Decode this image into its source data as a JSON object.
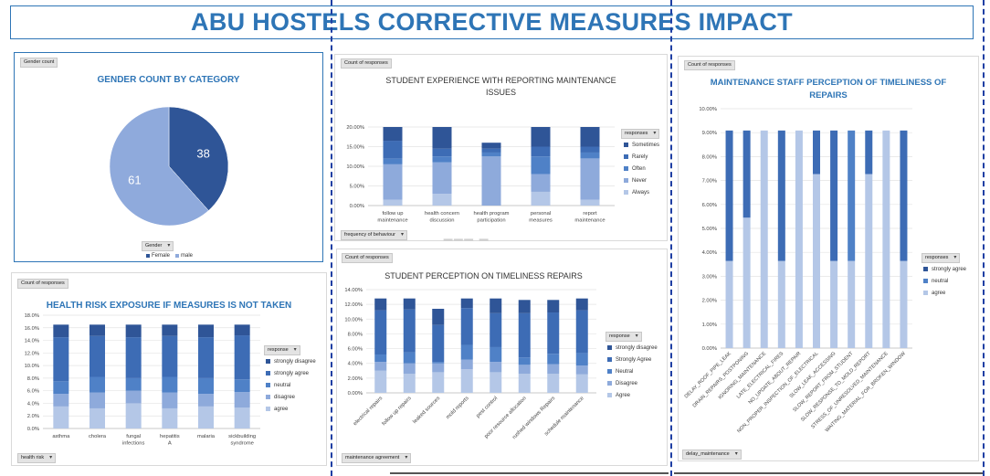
{
  "dashboard_title": "ABU HOSTELS CORRECTIVE MEASURES IMPACT",
  "colors": {
    "shade1": "#2f5597",
    "shade2": "#3d6cb5",
    "shade3": "#4f81c7",
    "shade4": "#8eaadb",
    "shade5": "#b4c7e7",
    "accent": "#2e75b6"
  },
  "gender_panel": {
    "field_button": "Gender count",
    "filter_button": "Gender",
    "legend": [
      {
        "label": "Female",
        "color": "#2f5597"
      },
      {
        "label": "male",
        "color": "#8faadc"
      }
    ]
  },
  "experience_panel": {
    "field_button": "Count of responses",
    "filter_button": "frequency of behaviour",
    "legend_title": "responses",
    "legend": [
      {
        "label": "Sometimes",
        "color": "#2f5597"
      },
      {
        "label": "Rarely",
        "color": "#3d6cb5"
      },
      {
        "label": "Often",
        "color": "#4f81c7"
      },
      {
        "label": "Never",
        "color": "#8eaadb"
      },
      {
        "label": "Always",
        "color": "#b4c7e7"
      }
    ]
  },
  "health_panel": {
    "field_button": "Count of responses",
    "filter_button": "health risk",
    "legend_title": "response",
    "legend": [
      {
        "label": "strongly disagree",
        "color": "#2f5597"
      },
      {
        "label": "strongly agree",
        "color": "#3d6cb5"
      },
      {
        "label": "neutral",
        "color": "#4f81c7"
      },
      {
        "label": "disagree",
        "color": "#8eaadb"
      },
      {
        "label": "agree",
        "color": "#b4c7e7"
      }
    ]
  },
  "timeliness_panel": {
    "field_button": "Count of responses",
    "filter_button": "maintenance agreement",
    "legend_title": "response",
    "legend": [
      {
        "label": "strongly disagree",
        "color": "#2f5597"
      },
      {
        "label": "Strongly Agree",
        "color": "#3d6cb5"
      },
      {
        "label": "Neutral",
        "color": "#4f81c7"
      },
      {
        "label": "Disagree",
        "color": "#8eaadb"
      },
      {
        "label": "Agree",
        "color": "#b4c7e7"
      }
    ]
  },
  "staff_panel": {
    "field_button": "Count of responses",
    "filter_button": "delay_maintenance",
    "legend_title": "responses",
    "legend": [
      {
        "label": "strongly agree",
        "color": "#2f5597"
      },
      {
        "label": "neutral",
        "color": "#4f81c7"
      },
      {
        "label": "agree",
        "color": "#b4c7e7"
      }
    ]
  },
  "chart_data": [
    {
      "id": "gender",
      "type": "pie",
      "title": "GENDER  COUNT BY CATEGORY",
      "categories": [
        "Female",
        "male"
      ],
      "values": [
        38,
        61
      ],
      "colors": [
        "#2f5597",
        "#8faadc"
      ]
    },
    {
      "id": "experience",
      "type": "bar",
      "stacked": true,
      "title": "STUDENT EXPERIENCE WITH REPORTING MAINTENANCE ISSUES",
      "categories": [
        "follow up maintenance",
        "health concern discussion",
        "health program participation",
        "personal measures",
        "report maintenance"
      ],
      "ylim": [
        0,
        20
      ],
      "yticks": [
        "0.00%",
        "5.00%",
        "10.00%",
        "15.00%",
        "20.00%"
      ],
      "series": [
        {
          "name": "Always",
          "values": [
            1.5,
            3.0,
            0.0,
            3.5,
            1.5
          ]
        },
        {
          "name": "Never",
          "values": [
            9.0,
            8.0,
            12.5,
            4.5,
            10.5
          ]
        },
        {
          "name": "Often",
          "values": [
            1.5,
            1.5,
            1.0,
            4.5,
            1.5
          ]
        },
        {
          "name": "Rarely",
          "values": [
            4.5,
            2.0,
            1.0,
            2.5,
            1.5
          ]
        },
        {
          "name": "Sometimes",
          "values": [
            3.5,
            5.5,
            1.5,
            5.0,
            5.0
          ]
        }
      ]
    },
    {
      "id": "health",
      "type": "bar",
      "stacked": true,
      "title": "HEALTH RISK EXPOSURE IF MEASURES IS NOT TAKEN",
      "categories": [
        "asthma",
        "cholera",
        "fungal infections",
        "hepatitis A",
        "malaria",
        "sickbuilding syndrome"
      ],
      "ylim": [
        0,
        18
      ],
      "yticks": [
        "0.0%",
        "2.0%",
        "4.0%",
        "6.0%",
        "8.0%",
        "10.0%",
        "12.0%",
        "14.0%",
        "16.0%",
        "18.0%"
      ],
      "series": [
        {
          "name": "agree",
          "values": [
            3.5,
            3.2,
            4.0,
            3.2,
            3.5,
            3.3
          ]
        },
        {
          "name": "disagree",
          "values": [
            2.0,
            2.5,
            2.0,
            2.5,
            2.0,
            2.5
          ]
        },
        {
          "name": "neutral",
          "values": [
            2.0,
            2.5,
            2.0,
            2.5,
            2.5,
            2.0
          ]
        },
        {
          "name": "strongly agree",
          "values": [
            7.0,
            6.5,
            6.5,
            6.5,
            6.5,
            7.0
          ]
        },
        {
          "name": "strongly disagree",
          "values": [
            2.0,
            1.8,
            2.0,
            1.8,
            2.0,
            1.7
          ]
        }
      ]
    },
    {
      "id": "timeliness",
      "type": "bar",
      "stacked": true,
      "title": "STUDENT PERCEPTION ON TIMELINESS REPAIRS",
      "categories": [
        "electrical repairs",
        "follow up repairs",
        "leaked sources",
        "mold reports",
        "pest control",
        "poor resource allocation",
        "rushed windows Repairs",
        "schedule maintenance"
      ],
      "ylim": [
        0,
        14
      ],
      "yticks": [
        "0.00%",
        "2.00%",
        "4.00%",
        "6.00%",
        "8.00%",
        "10.00%",
        "12.00%",
        "14.00%"
      ],
      "series": [
        {
          "name": "Agree",
          "values": [
            3.0,
            2.6,
            2.8,
            3.2,
            2.8,
            2.6,
            2.6,
            2.5
          ]
        },
        {
          "name": "Disagree",
          "values": [
            1.2,
            1.4,
            1.2,
            1.3,
            1.4,
            1.2,
            1.3,
            1.2
          ]
        },
        {
          "name": "Neutral",
          "values": [
            1.0,
            1.5,
            0.2,
            2.0,
            2.0,
            1.0,
            1.4,
            1.7
          ]
        },
        {
          "name": "Strongly Agree",
          "values": [
            6.0,
            5.8,
            5.0,
            5.0,
            4.6,
            6.0,
            5.6,
            5.8
          ]
        },
        {
          "name": "strongly disagree",
          "values": [
            1.6,
            1.5,
            2.2,
            1.3,
            2.0,
            1.8,
            1.7,
            1.6
          ]
        }
      ]
    },
    {
      "id": "staff",
      "type": "bar",
      "stacked": true,
      "title": "MAINTENANCE STAFF PERCEPTION OF TIMELINESS OF REPAIRS",
      "categories": [
        "DELAY_ROOF_PIPE_LEAK",
        "DRAIN_REPAIRS_POSTPONING",
        "IGNORING_MAINTENANCE",
        "LATE_ELECTRICAL_FIRES",
        "NO_UPDATE_ABOUT_REPAIR",
        "NON_PROPER_INSPECTION_OF_ELECTRICAL",
        "SLOW_LEAK_ACCESSING",
        "SLOW_REPORT_FROM_STUDENT",
        "SLOW_RESPONSE_TO_MOLD_REPORT",
        "STRESS_OF_UNRESOLVED_MAINTENANCE",
        "WAITING_MATERIAL_FOR_BROKEN_WINDOW"
      ],
      "ylim": [
        0,
        10
      ],
      "yticks": [
        "0.00%",
        "1.00%",
        "2.00%",
        "3.00%",
        "4.00%",
        "5.00%",
        "6.00%",
        "7.00%",
        "8.00%",
        "9.00%",
        "10.00%"
      ],
      "series": [
        {
          "name": "agree",
          "values": [
            3.64,
            5.45,
            9.09,
            3.64,
            9.09,
            7.27,
            3.64,
            3.64,
            7.27,
            9.09,
            3.64
          ]
        },
        {
          "name": "neutral",
          "values": [
            0,
            0,
            0,
            0,
            0,
            0,
            0,
            5.45,
            0,
            0,
            0
          ]
        },
        {
          "name": "strongly agree",
          "values": [
            5.45,
            3.64,
            0,
            5.45,
            0,
            1.82,
            5.45,
            0,
            1.82,
            0,
            5.45
          ]
        }
      ]
    }
  ]
}
